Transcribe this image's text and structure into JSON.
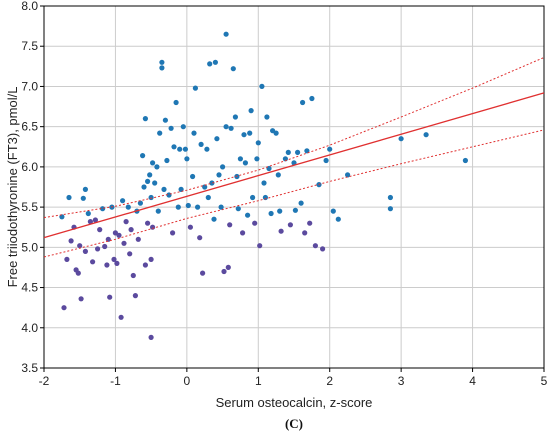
{
  "chart_data": {
    "type": "scatter",
    "title": "",
    "xlabel": "Serum osteocalcin, z-score",
    "ylabel": "Free triiodothyronine (FT3), pmol/L",
    "panel_label": "(C)",
    "xlim": [
      -2,
      5
    ],
    "ylim": [
      3.5,
      8.0
    ],
    "x_ticks": [
      "-2",
      "-1",
      "0",
      "1",
      "2",
      "3",
      "4",
      "5"
    ],
    "x_tick_values": [
      -2,
      -1,
      0,
      1,
      2,
      3,
      4,
      5
    ],
    "y_ticks": [
      "3.5",
      "4.0",
      "4.5",
      "5.0",
      "5.5",
      "6.0",
      "6.5",
      "7.0",
      "7.5",
      "8.0"
    ],
    "y_tick_values": [
      3.5,
      4.0,
      4.5,
      5.0,
      5.5,
      6.0,
      6.5,
      7.0,
      7.5,
      8.0
    ],
    "grid": true,
    "colors": {
      "points_blue": "#1f77b4",
      "points_purple": "#5b4a9e",
      "regression": "#e03030",
      "grid": "#cccccc"
    },
    "regression_line": {
      "x": [
        -2,
        5
      ],
      "y": [
        5.12,
        6.92
      ]
    },
    "confidence_band": {
      "x": [
        -2,
        -1,
        0,
        1,
        2,
        3,
        4,
        5
      ],
      "upper": [
        5.37,
        5.51,
        5.71,
        5.96,
        6.27,
        6.62,
        6.98,
        7.36
      ],
      "lower": [
        4.88,
        5.1,
        5.36,
        5.58,
        5.82,
        6.04,
        6.25,
        6.46
      ]
    },
    "points": [
      {
        "x": -1.75,
        "y": 5.38
      },
      {
        "x": -1.72,
        "y": 4.25
      },
      {
        "x": -1.68,
        "y": 4.85
      },
      {
        "x": -1.65,
        "y": 5.62
      },
      {
        "x": -1.62,
        "y": 5.08
      },
      {
        "x": -1.58,
        "y": 5.25
      },
      {
        "x": -1.55,
        "y": 4.72
      },
      {
        "x": -1.52,
        "y": 4.68
      },
      {
        "x": -1.5,
        "y": 5.02
      },
      {
        "x": -1.48,
        "y": 4.36
      },
      {
        "x": -1.45,
        "y": 5.61
      },
      {
        "x": -1.42,
        "y": 4.95
      },
      {
        "x": -1.42,
        "y": 5.72
      },
      {
        "x": -1.38,
        "y": 5.42
      },
      {
        "x": -1.35,
        "y": 5.32
      },
      {
        "x": -1.32,
        "y": 4.82
      },
      {
        "x": -1.28,
        "y": 5.34
      },
      {
        "x": -1.25,
        "y": 4.98
      },
      {
        "x": -1.22,
        "y": 5.22
      },
      {
        "x": -1.18,
        "y": 5.48
      },
      {
        "x": -1.15,
        "y": 5.01
      },
      {
        "x": -1.12,
        "y": 4.78
      },
      {
        "x": -1.1,
        "y": 5.1
      },
      {
        "x": -1.08,
        "y": 4.38
      },
      {
        "x": -1.05,
        "y": 5.5
      },
      {
        "x": -1.02,
        "y": 4.85
      },
      {
        "x": -1.0,
        "y": 5.18
      },
      {
        "x": -0.98,
        "y": 4.8
      },
      {
        "x": -0.95,
        "y": 5.15
      },
      {
        "x": -0.92,
        "y": 4.13
      },
      {
        "x": -0.9,
        "y": 5.58
      },
      {
        "x": -0.88,
        "y": 5.05
      },
      {
        "x": -0.85,
        "y": 5.32
      },
      {
        "x": -0.82,
        "y": 5.5
      },
      {
        "x": -0.8,
        "y": 4.92
      },
      {
        "x": -0.78,
        "y": 5.22
      },
      {
        "x": -0.75,
        "y": 4.65
      },
      {
        "x": -0.72,
        "y": 4.4
      },
      {
        "x": -0.7,
        "y": 5.45
      },
      {
        "x": -0.68,
        "y": 5.1
      },
      {
        "x": -0.65,
        "y": 5.55
      },
      {
        "x": -0.62,
        "y": 6.14
      },
      {
        "x": -0.6,
        "y": 5.75
      },
      {
        "x": -0.58,
        "y": 6.6
      },
      {
        "x": -0.58,
        "y": 4.78
      },
      {
        "x": -0.55,
        "y": 5.82
      },
      {
        "x": -0.55,
        "y": 5.3
      },
      {
        "x": -0.52,
        "y": 5.9
      },
      {
        "x": -0.5,
        "y": 5.62
      },
      {
        "x": -0.5,
        "y": 4.85
      },
      {
        "x": -0.5,
        "y": 3.88
      },
      {
        "x": -0.48,
        "y": 6.05
      },
      {
        "x": -0.48,
        "y": 5.25
      },
      {
        "x": -0.45,
        "y": 5.8
      },
      {
        "x": -0.42,
        "y": 6.0
      },
      {
        "x": -0.4,
        "y": 5.45
      },
      {
        "x": -0.38,
        "y": 6.42
      },
      {
        "x": -0.35,
        "y": 7.3
      },
      {
        "x": -0.35,
        "y": 7.23
      },
      {
        "x": -0.32,
        "y": 5.72
      },
      {
        "x": -0.3,
        "y": 6.58
      },
      {
        "x": -0.28,
        "y": 6.08
      },
      {
        "x": -0.25,
        "y": 5.65
      },
      {
        "x": -0.22,
        "y": 6.48
      },
      {
        "x": -0.2,
        "y": 5.18
      },
      {
        "x": -0.18,
        "y": 6.25
      },
      {
        "x": -0.15,
        "y": 6.8
      },
      {
        "x": -0.12,
        "y": 5.5
      },
      {
        "x": -0.1,
        "y": 6.22
      },
      {
        "x": -0.08,
        "y": 5.72
      },
      {
        "x": -0.05,
        "y": 6.5
      },
      {
        "x": -0.02,
        "y": 6.22
      },
      {
        "x": 0.0,
        "y": 6.1
      },
      {
        "x": 0.02,
        "y": 5.52
      },
      {
        "x": 0.05,
        "y": 5.25
      },
      {
        "x": 0.08,
        "y": 5.88
      },
      {
        "x": 0.1,
        "y": 6.42
      },
      {
        "x": 0.12,
        "y": 6.98
      },
      {
        "x": 0.15,
        "y": 5.5
      },
      {
        "x": 0.18,
        "y": 5.12
      },
      {
        "x": 0.2,
        "y": 6.28
      },
      {
        "x": 0.22,
        "y": 4.68
      },
      {
        "x": 0.25,
        "y": 5.75
      },
      {
        "x": 0.28,
        "y": 6.22
      },
      {
        "x": 0.3,
        "y": 5.62
      },
      {
        "x": 0.32,
        "y": 7.28
      },
      {
        "x": 0.35,
        "y": 5.8
      },
      {
        "x": 0.38,
        "y": 5.35
      },
      {
        "x": 0.4,
        "y": 7.3
      },
      {
        "x": 0.42,
        "y": 6.35
      },
      {
        "x": 0.45,
        "y": 5.9
      },
      {
        "x": 0.48,
        "y": 5.5
      },
      {
        "x": 0.5,
        "y": 6.0
      },
      {
        "x": 0.52,
        "y": 4.7
      },
      {
        "x": 0.55,
        "y": 7.65
      },
      {
        "x": 0.55,
        "y": 6.5
      },
      {
        "x": 0.58,
        "y": 4.75
      },
      {
        "x": 0.6,
        "y": 5.28
      },
      {
        "x": 0.62,
        "y": 6.48
      },
      {
        "x": 0.65,
        "y": 7.22
      },
      {
        "x": 0.68,
        "y": 6.62
      },
      {
        "x": 0.7,
        "y": 5.88
      },
      {
        "x": 0.72,
        "y": 5.48
      },
      {
        "x": 0.75,
        "y": 6.1
      },
      {
        "x": 0.78,
        "y": 5.18
      },
      {
        "x": 0.8,
        "y": 6.4
      },
      {
        "x": 0.82,
        "y": 6.05
      },
      {
        "x": 0.85,
        "y": 5.4
      },
      {
        "x": 0.88,
        "y": 6.42
      },
      {
        "x": 0.9,
        "y": 6.7
      },
      {
        "x": 0.92,
        "y": 5.62
      },
      {
        "x": 0.95,
        "y": 5.3
      },
      {
        "x": 0.98,
        "y": 6.1
      },
      {
        "x": 1.0,
        "y": 6.3
      },
      {
        "x": 1.02,
        "y": 5.02
      },
      {
        "x": 1.05,
        "y": 7.0
      },
      {
        "x": 1.08,
        "y": 5.8
      },
      {
        "x": 1.1,
        "y": 5.62
      },
      {
        "x": 1.12,
        "y": 6.62
      },
      {
        "x": 1.15,
        "y": 5.98
      },
      {
        "x": 1.18,
        "y": 5.42
      },
      {
        "x": 1.2,
        "y": 6.45
      },
      {
        "x": 1.25,
        "y": 6.42
      },
      {
        "x": 1.28,
        "y": 5.9
      },
      {
        "x": 1.3,
        "y": 5.45
      },
      {
        "x": 1.32,
        "y": 5.2
      },
      {
        "x": 1.38,
        "y": 6.1
      },
      {
        "x": 1.42,
        "y": 6.18
      },
      {
        "x": 1.45,
        "y": 5.28
      },
      {
        "x": 1.5,
        "y": 6.05
      },
      {
        "x": 1.52,
        "y": 5.46
      },
      {
        "x": 1.55,
        "y": 6.18
      },
      {
        "x": 1.6,
        "y": 5.55
      },
      {
        "x": 1.62,
        "y": 6.8
      },
      {
        "x": 1.65,
        "y": 5.18
      },
      {
        "x": 1.68,
        "y": 6.2
      },
      {
        "x": 1.72,
        "y": 5.3
      },
      {
        "x": 1.75,
        "y": 6.85
      },
      {
        "x": 1.8,
        "y": 5.02
      },
      {
        "x": 1.85,
        "y": 5.78
      },
      {
        "x": 1.9,
        "y": 4.98
      },
      {
        "x": 1.95,
        "y": 6.08
      },
      {
        "x": 2.0,
        "y": 6.22
      },
      {
        "x": 2.05,
        "y": 5.45
      },
      {
        "x": 2.12,
        "y": 5.35
      },
      {
        "x": 2.25,
        "y": 5.9
      },
      {
        "x": 2.85,
        "y": 5.48
      },
      {
        "x": 2.85,
        "y": 5.62
      },
      {
        "x": 3.0,
        "y": 6.35
      },
      {
        "x": 3.35,
        "y": 6.4
      },
      {
        "x": 3.9,
        "y": 6.08
      }
    ]
  }
}
